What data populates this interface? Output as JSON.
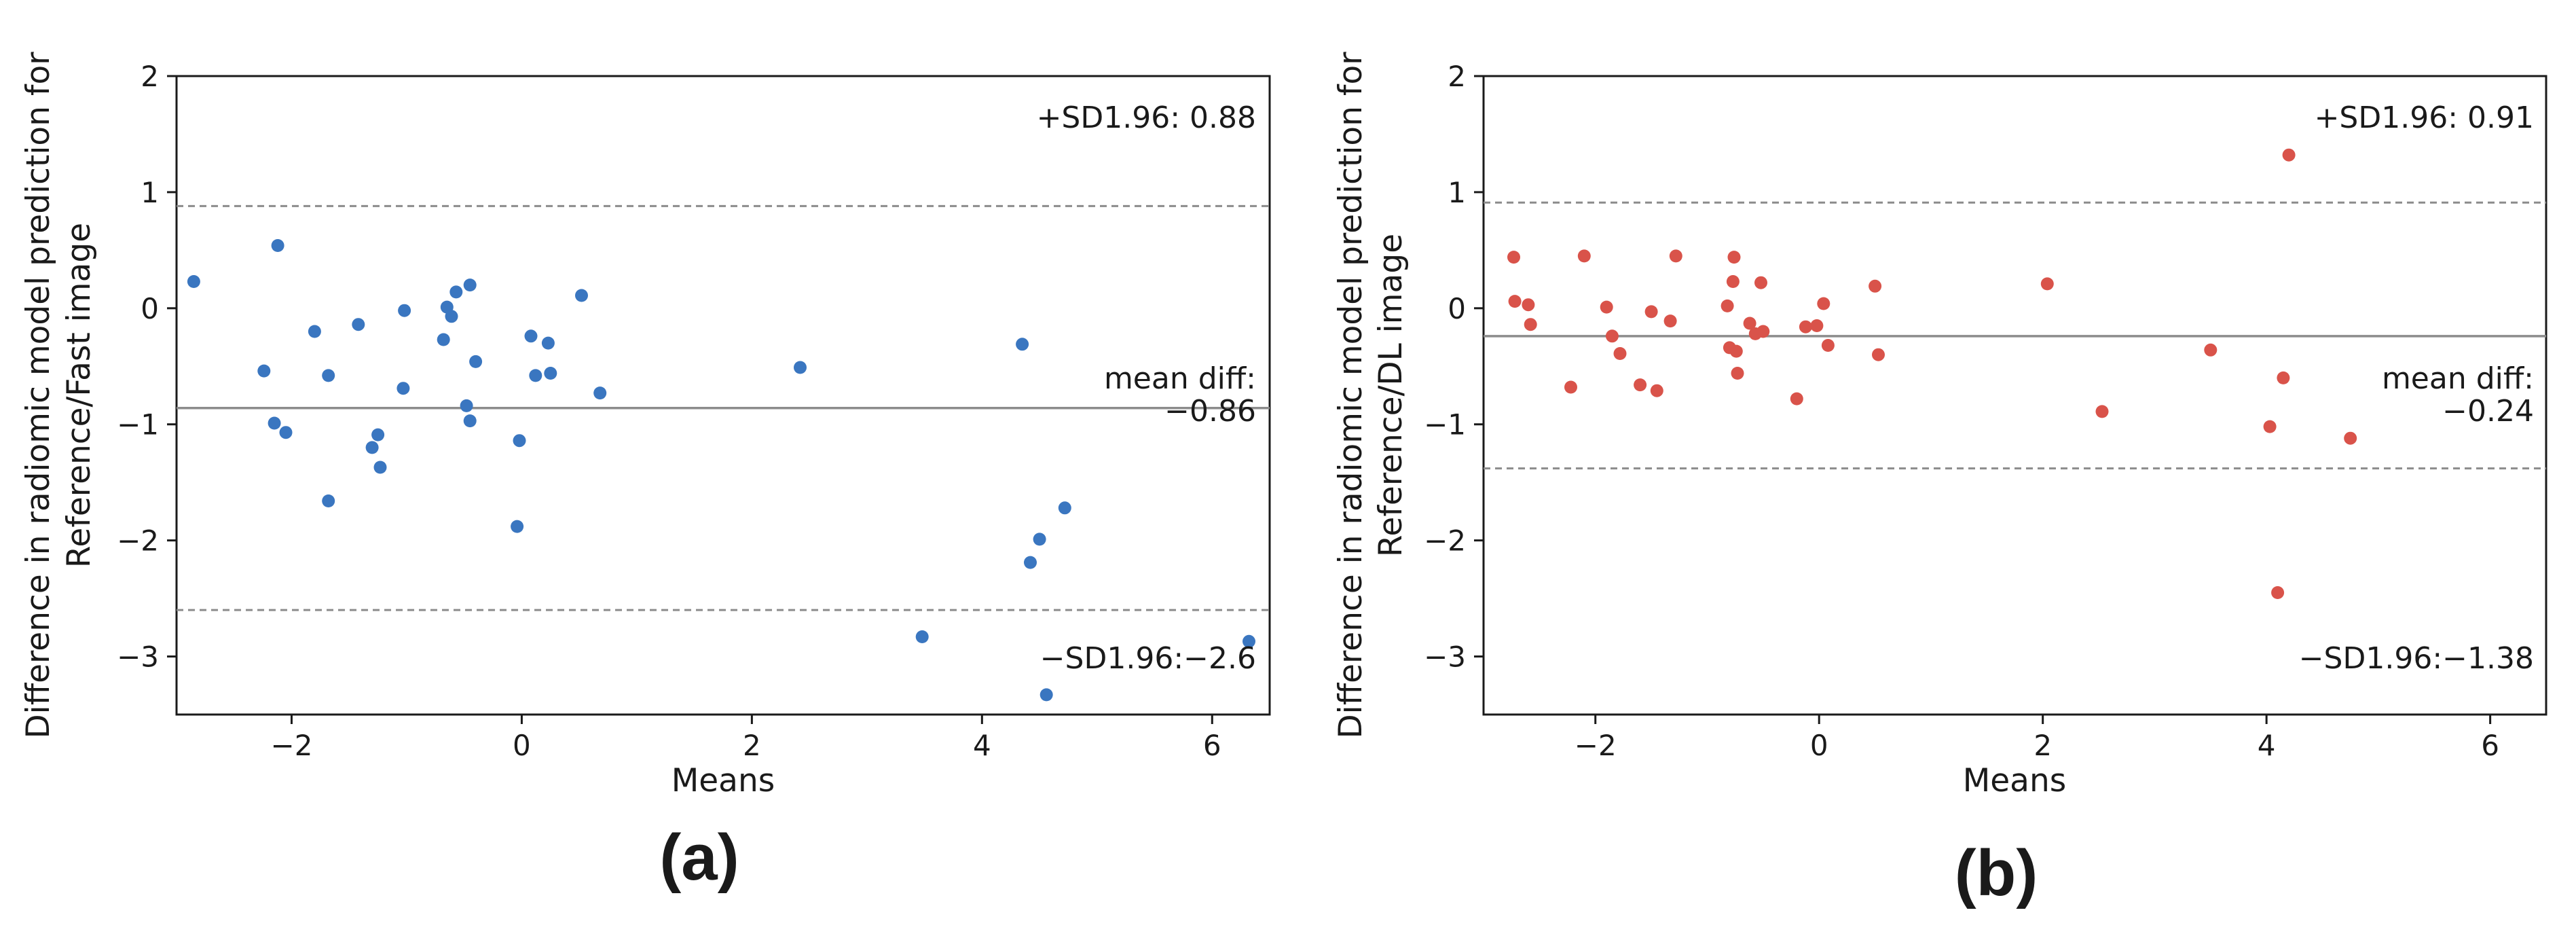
{
  "chart_data": [
    {
      "type": "scatter",
      "panel_label": "(a)",
      "xlabel": "Means",
      "ylabel_lines": [
        "Difference in radiomic model prediction for",
        "Reference/Fast image"
      ],
      "xlim": [
        -3.0,
        6.5
      ],
      "ylim": [
        -3.5,
        2.0
      ],
      "xticks": [
        -2,
        0,
        2,
        4,
        6
      ],
      "yticks": [
        -3,
        -2,
        -1,
        0,
        1,
        2
      ],
      "xtick_labels": [
        "−2",
        "0",
        "2",
        "4",
        "6"
      ],
      "ytick_labels": [
        "−3",
        "−2",
        "−1",
        "0",
        "1",
        "2"
      ],
      "color": "#3a76c0",
      "mean_diff": -0.86,
      "upper_loa": 0.88,
      "lower_loa": -2.6,
      "annotations": {
        "upper": "+SD1.96: 0.88",
        "mean_line1": "mean diff:",
        "mean_line2": "−0.86",
        "lower": "−SD1.96:−2.6"
      },
      "points": {
        "x": [
          -2.85,
          -2.12,
          -2.24,
          -2.15,
          -2.05,
          -1.8,
          -1.68,
          -1.68,
          -1.42,
          -1.3,
          -1.25,
          -1.23,
          -1.03,
          -1.02,
          -0.68,
          -0.65,
          -0.61,
          -0.57,
          -0.48,
          -0.45,
          -0.45,
          -0.4,
          -0.04,
          -0.02,
          0.08,
          0.12,
          0.23,
          0.25,
          0.52,
          0.68,
          2.42,
          3.48,
          4.35,
          4.42,
          4.5,
          4.56,
          4.72,
          6.32
        ],
        "y": [
          0.23,
          0.54,
          -0.54,
          -0.99,
          -1.07,
          -0.2,
          -0.58,
          -1.66,
          -0.14,
          -1.2,
          -1.09,
          -1.37,
          -0.69,
          -0.02,
          -0.27,
          0.01,
          -0.07,
          0.14,
          -0.84,
          0.2,
          -0.97,
          -0.46,
          -1.88,
          -1.14,
          -0.24,
          -0.58,
          -0.3,
          -0.56,
          0.11,
          -0.73,
          -0.51,
          -2.83,
          -0.31,
          -2.19,
          -1.99,
          -3.33,
          -1.72,
          -2.87
        ]
      }
    },
    {
      "type": "scatter",
      "panel_label": "(b)",
      "xlabel": "Means",
      "ylabel_lines": [
        "Difference in radiomic model prediction for",
        "Reference/DL image"
      ],
      "xlim": [
        -3.0,
        6.5
      ],
      "ylim": [
        -3.5,
        2.0
      ],
      "xticks": [
        -2,
        0,
        2,
        4,
        6
      ],
      "yticks": [
        -3,
        -2,
        -1,
        0,
        1,
        2
      ],
      "xtick_labels": [
        "−2",
        "0",
        "2",
        "4",
        "6"
      ],
      "ytick_labels": [
        "−3",
        "−2",
        "−1",
        "0",
        "1",
        "2"
      ],
      "color": "#d9534a",
      "mean_diff": -0.24,
      "upper_loa": 0.91,
      "lower_loa": -1.38,
      "annotations": {
        "upper": "+SD1.96: 0.91",
        "mean_line1": "mean diff:",
        "mean_line2": "−0.24",
        "lower": "−SD1.96:−1.38"
      },
      "points": {
        "x": [
          -2.73,
          -2.72,
          -2.6,
          -2.58,
          -2.22,
          -2.1,
          -1.9,
          -1.85,
          -1.78,
          -1.6,
          -1.5,
          -1.45,
          -1.33,
          -1.28,
          -0.82,
          -0.8,
          -0.77,
          -0.76,
          -0.74,
          -0.73,
          -0.62,
          -0.57,
          -0.52,
          -0.5,
          -0.2,
          -0.12,
          -0.02,
          0.04,
          0.08,
          0.5,
          0.53,
          2.04,
          2.53,
          3.5,
          4.03,
          4.1,
          4.15,
          4.2,
          4.75
        ],
        "y": [
          0.44,
          0.06,
          0.03,
          -0.14,
          -0.68,
          0.45,
          0.01,
          -0.24,
          -0.39,
          -0.66,
          -0.03,
          -0.71,
          -0.11,
          0.45,
          0.02,
          -0.34,
          0.23,
          0.44,
          -0.37,
          -0.56,
          -0.13,
          -0.22,
          0.22,
          -0.2,
          -0.78,
          -0.16,
          -0.15,
          0.04,
          -0.32,
          0.19,
          -0.4,
          0.21,
          -0.89,
          -0.36,
          -1.02,
          -2.45,
          -0.6,
          1.32,
          -1.12
        ]
      }
    }
  ]
}
